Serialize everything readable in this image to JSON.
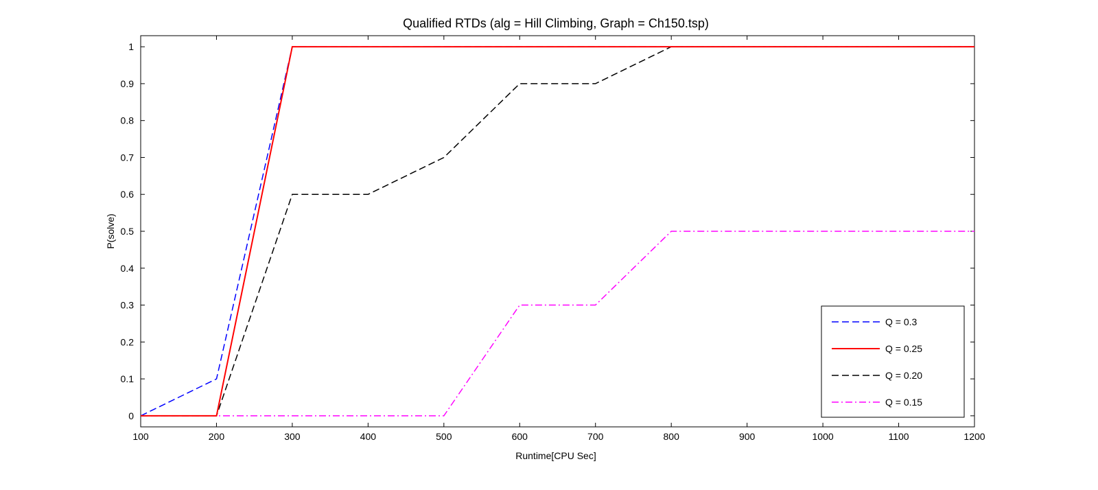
{
  "chart_data": {
    "type": "line",
    "title": "Qualified RTDs (alg = Hill Climbing, Graph = Ch150.tsp)",
    "xlabel": "Runtime[CPU Sec]",
    "ylabel": "P(solve)",
    "xlim": [
      100,
      1200
    ],
    "ylim": [
      -0.03,
      1.03
    ],
    "xticks": [
      100,
      200,
      300,
      400,
      500,
      600,
      700,
      800,
      900,
      1000,
      1100,
      1200
    ],
    "yticks": [
      0,
      0.1,
      0.2,
      0.3,
      0.4,
      0.5,
      0.6,
      0.7,
      0.8,
      0.9,
      1
    ],
    "xtick_labels": [
      "100",
      "200",
      "300",
      "400",
      "500",
      "600",
      "700",
      "800",
      "900",
      "1000",
      "1100",
      "1200"
    ],
    "ytick_labels": [
      "0",
      "0.1",
      "0.2",
      "0.3",
      "0.4",
      "0.5",
      "0.6",
      "0.7",
      "0.8",
      "0.9",
      "1"
    ],
    "grid": false,
    "legend_position": "bottom-right",
    "x": [
      100,
      200,
      300,
      400,
      500,
      600,
      700,
      800,
      900,
      1000,
      1100,
      1200
    ],
    "series": [
      {
        "name": "Q = 0.3",
        "color": "#0000ff",
        "style": "dashed",
        "values": [
          0,
          0.1,
          1,
          1,
          1,
          1,
          1,
          1,
          1,
          1,
          1,
          1
        ]
      },
      {
        "name": "Q = 0.25",
        "color": "#ff0000",
        "style": "solid",
        "values": [
          0,
          0,
          1,
          1,
          1,
          1,
          1,
          1,
          1,
          1,
          1,
          1
        ]
      },
      {
        "name": "Q = 0.20",
        "color": "#000000",
        "style": "dashed",
        "values": [
          0,
          0,
          0.6,
          0.6,
          0.7,
          0.9,
          0.9,
          1,
          1,
          1,
          1,
          1
        ]
      },
      {
        "name": "Q = 0.15",
        "color": "#ff00ff",
        "style": "dashdot",
        "values": [
          0,
          0,
          0,
          0,
          0,
          0.3,
          0.3,
          0.5,
          0.5,
          0.5,
          0.5,
          0.5
        ]
      }
    ]
  }
}
